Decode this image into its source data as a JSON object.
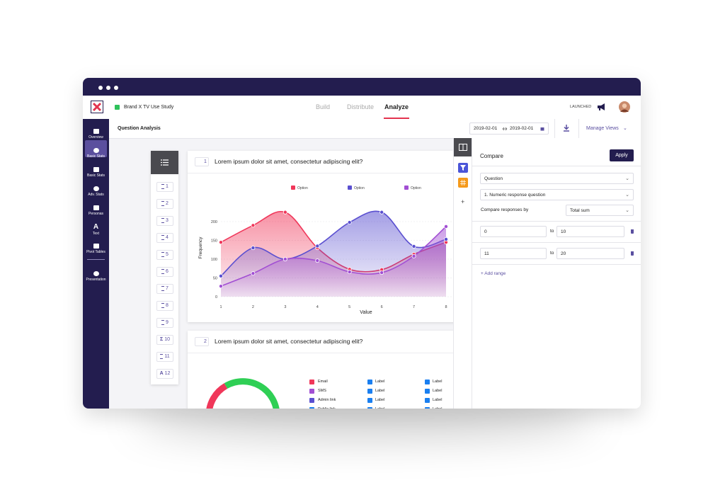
{
  "header": {
    "project": "Brand X TV Use Study",
    "tabs": [
      "Build",
      "Distribute",
      "Analyze"
    ],
    "status": "LAUNCHED"
  },
  "sidebar": [
    {
      "label": "Overview"
    },
    {
      "label": "Basic Stats"
    },
    {
      "label": "Basic Stats"
    },
    {
      "label": "Adv. Stats"
    },
    {
      "label": "Personas"
    },
    {
      "icon": "A",
      "label": "Text"
    },
    {
      "label": "Pivot Tables"
    },
    {
      "label": "Presentation"
    }
  ],
  "toolbar": {
    "title": "Question Analysis",
    "date_start": "2019-02-01",
    "date_end": "2019-02-01",
    "manage_views": "Manage Views"
  },
  "question_list": [
    {
      "number": "1"
    },
    {
      "number": "2"
    },
    {
      "number": "3"
    },
    {
      "number": "4"
    },
    {
      "number": "5"
    },
    {
      "number": "6"
    },
    {
      "number": "7"
    },
    {
      "number": "8"
    },
    {
      "number": "9"
    },
    {
      "icon": "Σ",
      "number": "10"
    },
    {
      "number": "11"
    },
    {
      "icon": "A",
      "number": "12"
    }
  ],
  "cards": [
    {
      "number": "1",
      "question": "Lorem ipsum dolor sit amet, consectetur adipiscing elit?"
    },
    {
      "number": "2",
      "question": "Lorem ipsum dolor sit amet, consectetur adipiscing elit?"
    }
  ],
  "donut_legend": {
    "channels": [
      "Email",
      "SMS",
      "Admin link",
      "Public link"
    ],
    "labels": [
      "Label",
      "Label",
      "Label",
      "Label",
      "Label",
      "Label",
      "Label",
      "Label"
    ]
  },
  "compare_panel": {
    "title": "Compare",
    "apply": "Apply",
    "question_select": "Question",
    "question_value": "1. Numeric response question",
    "compare_by_label": "Compare responses by",
    "compare_by_value": "Total sum",
    "ranges": [
      {
        "from": 0,
        "to": 10
      },
      {
        "from": 11,
        "to": 20
      }
    ],
    "range_separator": "to",
    "add_range": "+ Add range"
  },
  "chart_data": {
    "type": "area",
    "x_label": "Value",
    "y_label": "Frequency",
    "x": [
      1,
      2,
      3,
      4,
      5,
      6,
      7,
      8
    ],
    "xlim": [
      1,
      8
    ],
    "xticks": [
      1,
      2,
      3,
      4,
      5,
      6,
      7,
      8
    ],
    "ylim": [
      0,
      250
    ],
    "yticks": [
      0,
      50,
      100,
      150,
      200
    ],
    "grid": true,
    "series": [
      {
        "name": "Option",
        "color": "#f0375a",
        "values": [
          145,
          190,
          225,
          130,
          73,
          72,
          113,
          145
        ]
      },
      {
        "name": "Option",
        "color": "#5a4fd0",
        "values": [
          55,
          130,
          100,
          135,
          198,
          225,
          134,
          153
        ]
      },
      {
        "name": "Option",
        "color": "#a24fd3",
        "values": [
          28,
          62,
          100,
          96,
          66,
          64,
          108,
          187
        ]
      }
    ]
  }
}
